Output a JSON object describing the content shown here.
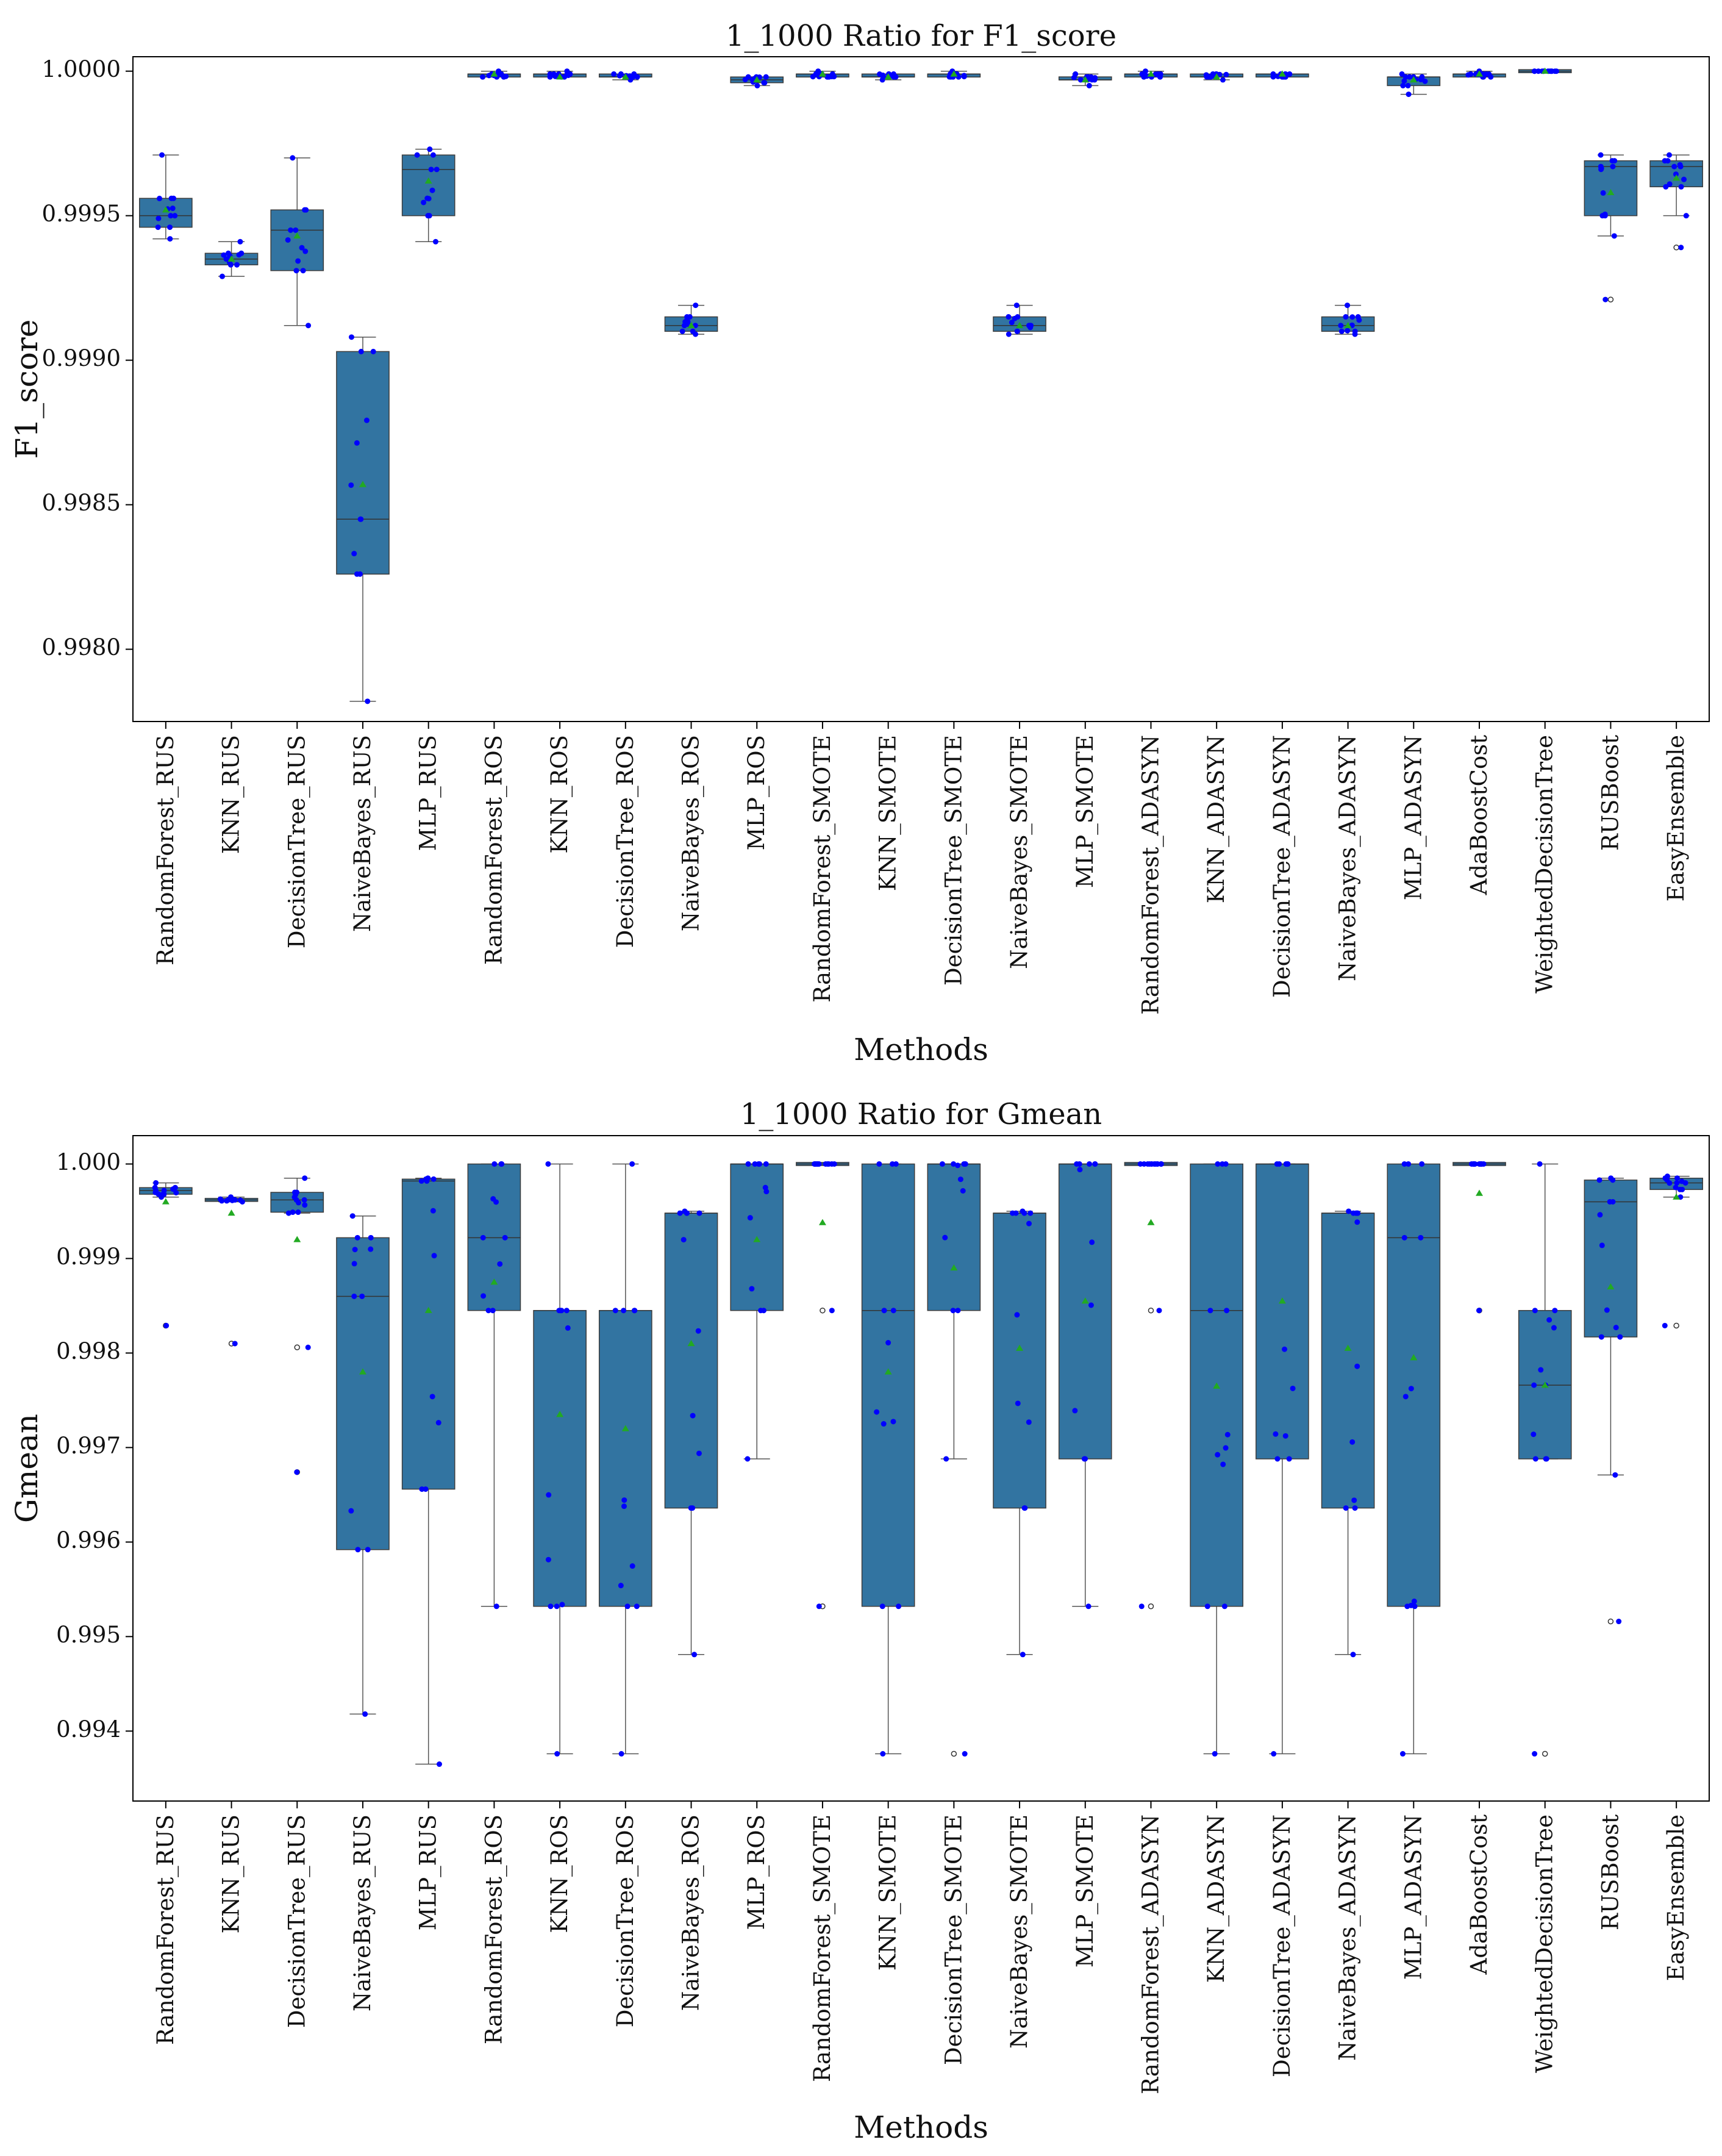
{
  "chart_data": [
    {
      "type": "box",
      "title": "1_1000 Ratio for F1_score",
      "xlabel": "Methods",
      "ylabel": "F1_score",
      "ylim": [
        0.99775,
        1.00005
      ],
      "yticks": [
        0.998,
        0.9985,
        0.999,
        0.9995,
        1.0
      ],
      "ytick_labels": [
        "0.9980",
        "0.9985",
        "0.9990",
        "0.9995",
        "1.0000"
      ],
      "grid": false,
      "box_color": "#3274a1",
      "point_color": "#0000ff",
      "mean_color": "#22aa22",
      "categories": [
        "RandomForest_RUS",
        "KNN_RUS",
        "DecisionTree_RUS",
        "NaiveBayes_RUS",
        "MLP_RUS",
        "RandomForest_ROS",
        "KNN_ROS",
        "DecisionTree_ROS",
        "NaiveBayes_ROS",
        "MLP_ROS",
        "RandomForest_SMOTE",
        "KNN_SMOTE",
        "DecisionTree_SMOTE",
        "NaiveBayes_SMOTE",
        "MLP_SMOTE",
        "RandomForest_ADASYN",
        "KNN_ADASYN",
        "DecisionTree_ADASYN",
        "NaiveBayes_ADASYN",
        "MLP_ADASYN",
        "AdaBoostCost",
        "WeightedDecisionTree",
        "RUSBoost",
        "EasyEnsemble"
      ],
      "boxes": [
        {
          "whislo": 0.99942,
          "q1": 0.99946,
          "med": 0.9995,
          "q3": 0.99956,
          "whishi": 0.99971,
          "mean": 0.99952,
          "fliers": []
        },
        {
          "whislo": 0.99929,
          "q1": 0.99933,
          "med": 0.99935,
          "q3": 0.99937,
          "whishi": 0.99941,
          "mean": 0.99935,
          "fliers": []
        },
        {
          "whislo": 0.99912,
          "q1": 0.99931,
          "med": 0.99945,
          "q3": 0.99952,
          "whishi": 0.9997,
          "mean": 0.99943,
          "fliers": []
        },
        {
          "whislo": 0.99782,
          "q1": 0.99826,
          "med": 0.99845,
          "q3": 0.99903,
          "whishi": 0.99908,
          "mean": 0.99857,
          "fliers": []
        },
        {
          "whislo": 0.99941,
          "q1": 0.9995,
          "med": 0.99966,
          "q3": 0.99971,
          "whishi": 0.99973,
          "mean": 0.99962,
          "fliers": []
        },
        {
          "whislo": 0.99998,
          "q1": 0.99998,
          "med": 0.99999,
          "q3": 0.99999,
          "whishi": 1.0,
          "mean": 0.99999,
          "fliers": []
        },
        {
          "whislo": 0.99998,
          "q1": 0.99998,
          "med": 0.99999,
          "q3": 0.99999,
          "whishi": 1.0,
          "mean": 0.99998,
          "fliers": []
        },
        {
          "whislo": 0.99997,
          "q1": 0.99998,
          "med": 0.99998,
          "q3": 0.99999,
          "whishi": 0.99999,
          "mean": 0.99998,
          "fliers": []
        },
        {
          "whislo": 0.99909,
          "q1": 0.9991,
          "med": 0.99912,
          "q3": 0.99915,
          "whishi": 0.99919,
          "mean": 0.99912,
          "fliers": []
        },
        {
          "whislo": 0.99995,
          "q1": 0.99996,
          "med": 0.99997,
          "q3": 0.99998,
          "whishi": 0.99998,
          "mean": 0.99997,
          "fliers": []
        },
        {
          "whislo": 0.99998,
          "q1": 0.99998,
          "med": 0.99999,
          "q3": 0.99999,
          "whishi": 1.0,
          "mean": 0.99999,
          "fliers": []
        },
        {
          "whislo": 0.99997,
          "q1": 0.99998,
          "med": 0.99998,
          "q3": 0.99999,
          "whishi": 0.99999,
          "mean": 0.99998,
          "fliers": []
        },
        {
          "whislo": 0.99998,
          "q1": 0.99998,
          "med": 0.99999,
          "q3": 0.99999,
          "whishi": 1.0,
          "mean": 0.99999,
          "fliers": []
        },
        {
          "whislo": 0.99909,
          "q1": 0.9991,
          "med": 0.99912,
          "q3": 0.99915,
          "whishi": 0.99919,
          "mean": 0.99912,
          "fliers": []
        },
        {
          "whislo": 0.99995,
          "q1": 0.99997,
          "med": 0.99997,
          "q3": 0.99998,
          "whishi": 0.99999,
          "mean": 0.99997,
          "fliers": []
        },
        {
          "whislo": 0.99998,
          "q1": 0.99998,
          "med": 0.99999,
          "q3": 0.99999,
          "whishi": 1.0,
          "mean": 0.99999,
          "fliers": []
        },
        {
          "whislo": 0.99997,
          "q1": 0.99998,
          "med": 0.99998,
          "q3": 0.99999,
          "whishi": 0.99999,
          "mean": 0.99998,
          "fliers": []
        },
        {
          "whislo": 0.99998,
          "q1": 0.99998,
          "med": 0.99999,
          "q3": 0.99999,
          "whishi": 0.99999,
          "mean": 0.99999,
          "fliers": []
        },
        {
          "whislo": 0.99909,
          "q1": 0.9991,
          "med": 0.99912,
          "q3": 0.99915,
          "whishi": 0.99919,
          "mean": 0.99912,
          "fliers": []
        },
        {
          "whislo": 0.99992,
          "q1": 0.99995,
          "med": 0.99998,
          "q3": 0.99998,
          "whishi": 0.99999,
          "mean": 0.99997,
          "fliers": []
        },
        {
          "whislo": 0.99998,
          "q1": 0.99998,
          "med": 0.99999,
          "q3": 0.99999,
          "whishi": 1.0,
          "mean": 0.99999,
          "fliers": []
        },
        {
          "whislo": 1.0,
          "q1": 1.0,
          "med": 1.0,
          "q3": 1.0,
          "whishi": 1.0,
          "mean": 1.0,
          "fliers": []
        },
        {
          "whislo": 0.99943,
          "q1": 0.9995,
          "med": 0.99967,
          "q3": 0.99969,
          "whishi": 0.99971,
          "mean": 0.99958,
          "fliers": [
            0.99921
          ]
        },
        {
          "whislo": 0.9995,
          "q1": 0.9996,
          "med": 0.99967,
          "q3": 0.99969,
          "whishi": 0.99971,
          "mean": 0.99963,
          "fliers": [
            0.99939
          ]
        }
      ]
    },
    {
      "type": "box",
      "title": "1_1000 Ratio for Gmean",
      "xlabel": "Methods",
      "ylabel": "Gmean",
      "ylim": [
        0.99326,
        1.0003
      ],
      "yticks": [
        0.994,
        0.995,
        0.996,
        0.997,
        0.998,
        0.999,
        1.0
      ],
      "ytick_labels": [
        "0.994",
        "0.995",
        "0.996",
        "0.997",
        "0.998",
        "0.999",
        "1.000"
      ],
      "grid": false,
      "box_color": "#3274a1",
      "point_color": "#0000ff",
      "mean_color": "#22aa22",
      "categories": [
        "RandomForest_RUS",
        "KNN_RUS",
        "DecisionTree_RUS",
        "NaiveBayes_RUS",
        "MLP_RUS",
        "RandomForest_ROS",
        "KNN_ROS",
        "DecisionTree_ROS",
        "NaiveBayes_ROS",
        "MLP_ROS",
        "RandomForest_SMOTE",
        "KNN_SMOTE",
        "DecisionTree_SMOTE",
        "NaiveBayes_SMOTE",
        "MLP_SMOTE",
        "RandomForest_ADASYN",
        "KNN_ADASYN",
        "DecisionTree_ADASYN",
        "NaiveBayes_ADASYN",
        "MLP_ADASYN",
        "AdaBoostCost",
        "WeightedDecisionTree",
        "RUSBoost",
        "EasyEnsemble"
      ],
      "boxes": [
        {
          "whislo": 0.99965,
          "q1": 0.99968,
          "med": 0.99972,
          "q3": 0.99975,
          "whishi": 0.9998,
          "mean": 0.9996,
          "fliers": [
            0.99829
          ]
        },
        {
          "whislo": 0.9996,
          "q1": 0.99961,
          "med": 0.99962,
          "q3": 0.99963,
          "whishi": 0.99965,
          "mean": 0.99948,
          "fliers": [
            0.9981
          ]
        },
        {
          "whislo": 0.99948,
          "q1": 0.99949,
          "med": 0.99962,
          "q3": 0.9997,
          "whishi": 0.99985,
          "mean": 0.9992,
          "fliers": [
            0.99806,
            0.99674
          ]
        },
        {
          "whislo": 0.99418,
          "q1": 0.99592,
          "med": 0.9986,
          "q3": 0.99922,
          "whishi": 0.99945,
          "mean": 0.9978,
          "fliers": []
        },
        {
          "whislo": 0.99365,
          "q1": 0.99656,
          "med": 0.99982,
          "q3": 0.99984,
          "whishi": 0.99985,
          "mean": 0.99845,
          "fliers": []
        },
        {
          "whislo": 0.99532,
          "q1": 0.99845,
          "med": 0.99922,
          "q3": 1.0,
          "whishi": 1.0,
          "mean": 0.99875,
          "fliers": []
        },
        {
          "whislo": 0.99376,
          "q1": 0.99532,
          "med": 0.99845,
          "q3": 0.99845,
          "whishi": 1.0,
          "mean": 0.99735,
          "fliers": []
        },
        {
          "whislo": 0.99376,
          "q1": 0.99532,
          "med": 0.99845,
          "q3": 0.99845,
          "whishi": 1.0,
          "mean": 0.9972,
          "fliers": []
        },
        {
          "whislo": 0.99481,
          "q1": 0.99636,
          "med": 0.99948,
          "q3": 0.99948,
          "whishi": 0.9995,
          "mean": 0.9981,
          "fliers": []
        },
        {
          "whislo": 0.99688,
          "q1": 0.99845,
          "med": 1.0,
          "q3": 1.0,
          "whishi": 1.0,
          "mean": 0.9992,
          "fliers": []
        },
        {
          "whislo": 1.0,
          "q1": 1.0,
          "med": 1.0,
          "q3": 1.0,
          "whishi": 1.0,
          "mean": 0.99938,
          "fliers": [
            0.99845,
            0.99532
          ]
        },
        {
          "whislo": 0.99376,
          "q1": 0.99532,
          "med": 0.99845,
          "q3": 1.0,
          "whishi": 1.0,
          "mean": 0.9978,
          "fliers": []
        },
        {
          "whislo": 0.99688,
          "q1": 0.99845,
          "med": 1.0,
          "q3": 1.0,
          "whishi": 1.0,
          "mean": 0.9989,
          "fliers": [
            0.99376
          ]
        },
        {
          "whislo": 0.99481,
          "q1": 0.99636,
          "med": 0.99948,
          "q3": 0.99948,
          "whishi": 0.9995,
          "mean": 0.99805,
          "fliers": []
        },
        {
          "whislo": 0.99532,
          "q1": 0.99688,
          "med": 1.0,
          "q3": 1.0,
          "whishi": 1.0,
          "mean": 0.99855,
          "fliers": []
        },
        {
          "whislo": 1.0,
          "q1": 1.0,
          "med": 1.0,
          "q3": 1.0,
          "whishi": 1.0,
          "mean": 0.99938,
          "fliers": [
            0.99845,
            0.99532
          ]
        },
        {
          "whislo": 0.99376,
          "q1": 0.99532,
          "med": 0.99845,
          "q3": 1.0,
          "whishi": 1.0,
          "mean": 0.99765,
          "fliers": []
        },
        {
          "whislo": 0.99376,
          "q1": 0.99688,
          "med": 1.0,
          "q3": 1.0,
          "whishi": 1.0,
          "mean": 0.99855,
          "fliers": []
        },
        {
          "whislo": 0.99481,
          "q1": 0.99636,
          "med": 0.99948,
          "q3": 0.99948,
          "whishi": 0.9995,
          "mean": 0.99805,
          "fliers": []
        },
        {
          "whislo": 0.99376,
          "q1": 0.99532,
          "med": 0.99922,
          "q3": 1.0,
          "whishi": 1.0,
          "mean": 0.99795,
          "fliers": []
        },
        {
          "whislo": 1.0,
          "q1": 1.0,
          "med": 1.0,
          "q3": 1.0,
          "whishi": 1.0,
          "mean": 0.99969,
          "fliers": [
            0.99845
          ]
        },
        {
          "whislo": 0.99688,
          "q1": 0.99688,
          "med": 0.99766,
          "q3": 0.99845,
          "whishi": 1.0,
          "mean": 0.99766,
          "fliers": [
            0.99376
          ]
        },
        {
          "whislo": 0.99671,
          "q1": 0.99817,
          "med": 0.9996,
          "q3": 0.99983,
          "whishi": 0.99985,
          "mean": 0.9987,
          "fliers": [
            0.99516
          ]
        },
        {
          "whislo": 0.99965,
          "q1": 0.99973,
          "med": 0.9998,
          "q3": 0.99985,
          "whishi": 0.99987,
          "mean": 0.99965,
          "fliers": [
            0.99829
          ]
        }
      ]
    }
  ]
}
